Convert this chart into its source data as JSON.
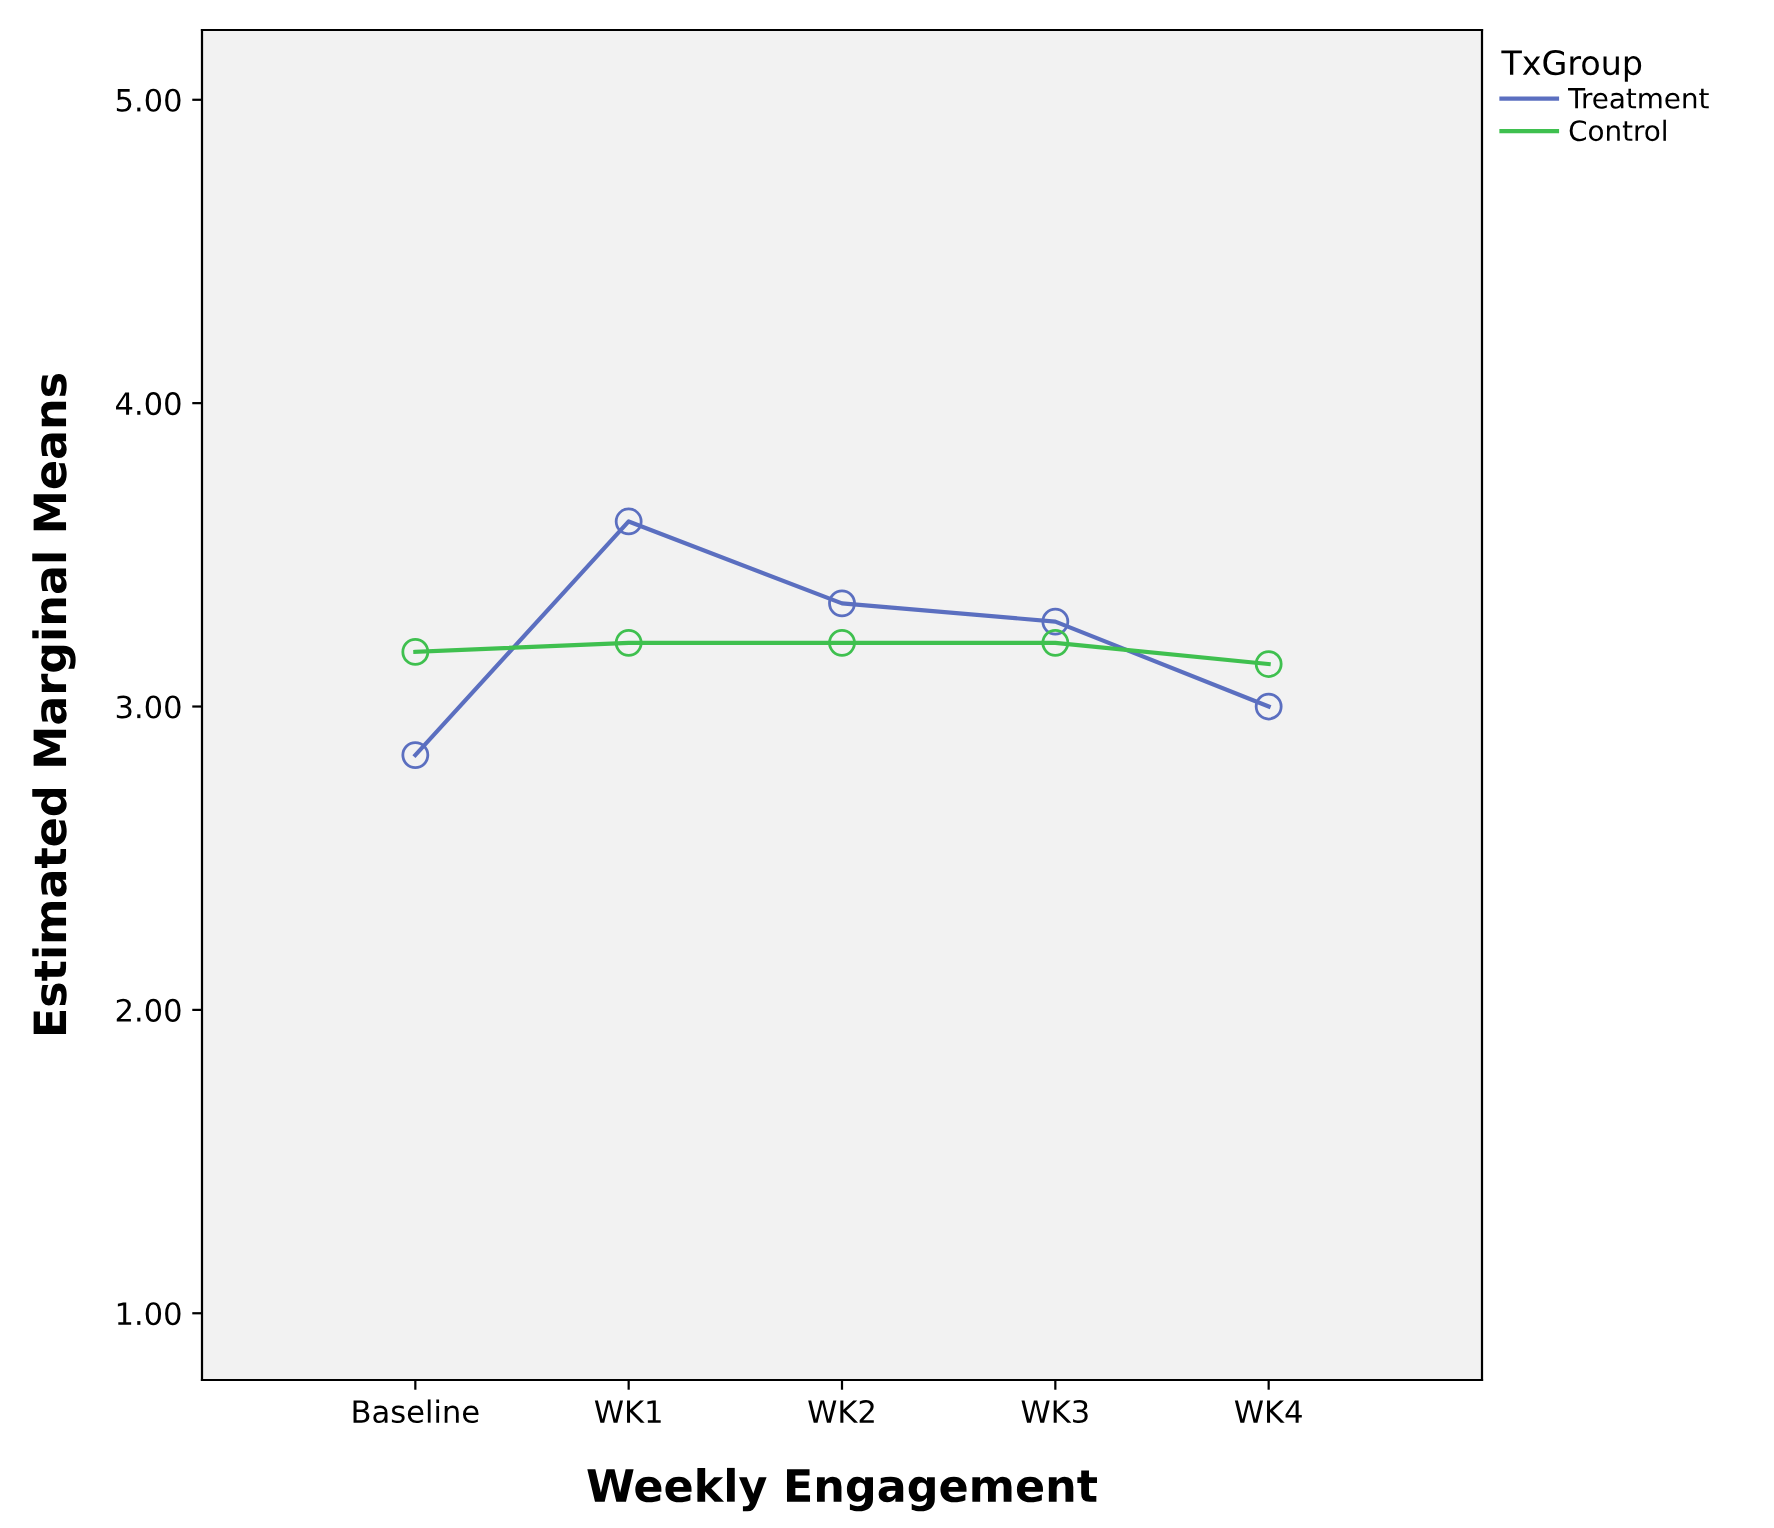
{
  "chart_data": {
    "type": "line",
    "xlabel": "Weekly Engagement",
    "ylabel": "Estimated Marginal Means",
    "legend_title": "TxGroup",
    "categories": [
      "Baseline",
      "WK1",
      "WK2",
      "WK3",
      "WK4"
    ],
    "series": [
      {
        "name": "Treatment",
        "color": "#5b6fc0",
        "values": [
          2.84,
          3.61,
          3.34,
          3.28,
          3.0
        ]
      },
      {
        "name": "Control",
        "color": "#3fc04f",
        "values": [
          3.18,
          3.21,
          3.21,
          3.21,
          3.14
        ]
      }
    ],
    "ylim": [
      0.78,
      5.23
    ],
    "yticks": [
      {
        "value": 1,
        "label": "1.00"
      },
      {
        "value": 2,
        "label": "2.00"
      },
      {
        "value": 3,
        "label": "3.00"
      },
      {
        "value": 4,
        "label": "4.00"
      },
      {
        "value": 5,
        "label": "5.00"
      }
    ],
    "grid": false,
    "legend": "top right",
    "marker": "circle",
    "line_style": "solid"
  }
}
